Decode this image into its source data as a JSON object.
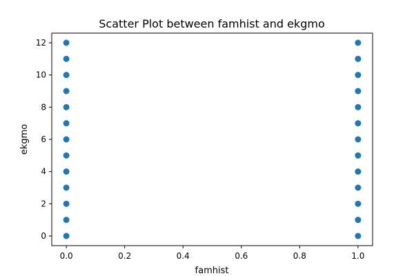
{
  "chart_data": {
    "type": "scatter",
    "title": "Scatter Plot between famhist and ekgmo",
    "xlabel": "famhist",
    "ylabel": "ekgmo",
    "xlim": [
      -0.05,
      1.05
    ],
    "ylim": [
      -0.6,
      12.6
    ],
    "xticks": [
      0.0,
      0.2,
      0.4,
      0.6,
      0.8,
      1.0
    ],
    "xtick_labels": [
      "0.0",
      "0.2",
      "0.4",
      "0.6",
      "0.8",
      "1.0"
    ],
    "yticks": [
      0,
      2,
      4,
      6,
      8,
      10,
      12
    ],
    "ytick_labels": [
      "0",
      "2",
      "4",
      "6",
      "8",
      "10",
      "12"
    ],
    "grid": false,
    "marker_color": "#1f77b4",
    "series": [
      {
        "points": [
          {
            "x": 0,
            "y": 0
          },
          {
            "x": 0,
            "y": 1
          },
          {
            "x": 0,
            "y": 2
          },
          {
            "x": 0,
            "y": 3
          },
          {
            "x": 0,
            "y": 4
          },
          {
            "x": 0,
            "y": 5
          },
          {
            "x": 0,
            "y": 6
          },
          {
            "x": 0,
            "y": 7
          },
          {
            "x": 0,
            "y": 8
          },
          {
            "x": 0,
            "y": 9
          },
          {
            "x": 0,
            "y": 10
          },
          {
            "x": 0,
            "y": 11
          },
          {
            "x": 0,
            "y": 12
          },
          {
            "x": 1,
            "y": 0
          },
          {
            "x": 1,
            "y": 1
          },
          {
            "x": 1,
            "y": 2
          },
          {
            "x": 1,
            "y": 3
          },
          {
            "x": 1,
            "y": 4
          },
          {
            "x": 1,
            "y": 5
          },
          {
            "x": 1,
            "y": 6
          },
          {
            "x": 1,
            "y": 7
          },
          {
            "x": 1,
            "y": 8
          },
          {
            "x": 1,
            "y": 9
          },
          {
            "x": 1,
            "y": 10
          },
          {
            "x": 1,
            "y": 11
          },
          {
            "x": 1,
            "y": 12
          }
        ]
      }
    ]
  }
}
